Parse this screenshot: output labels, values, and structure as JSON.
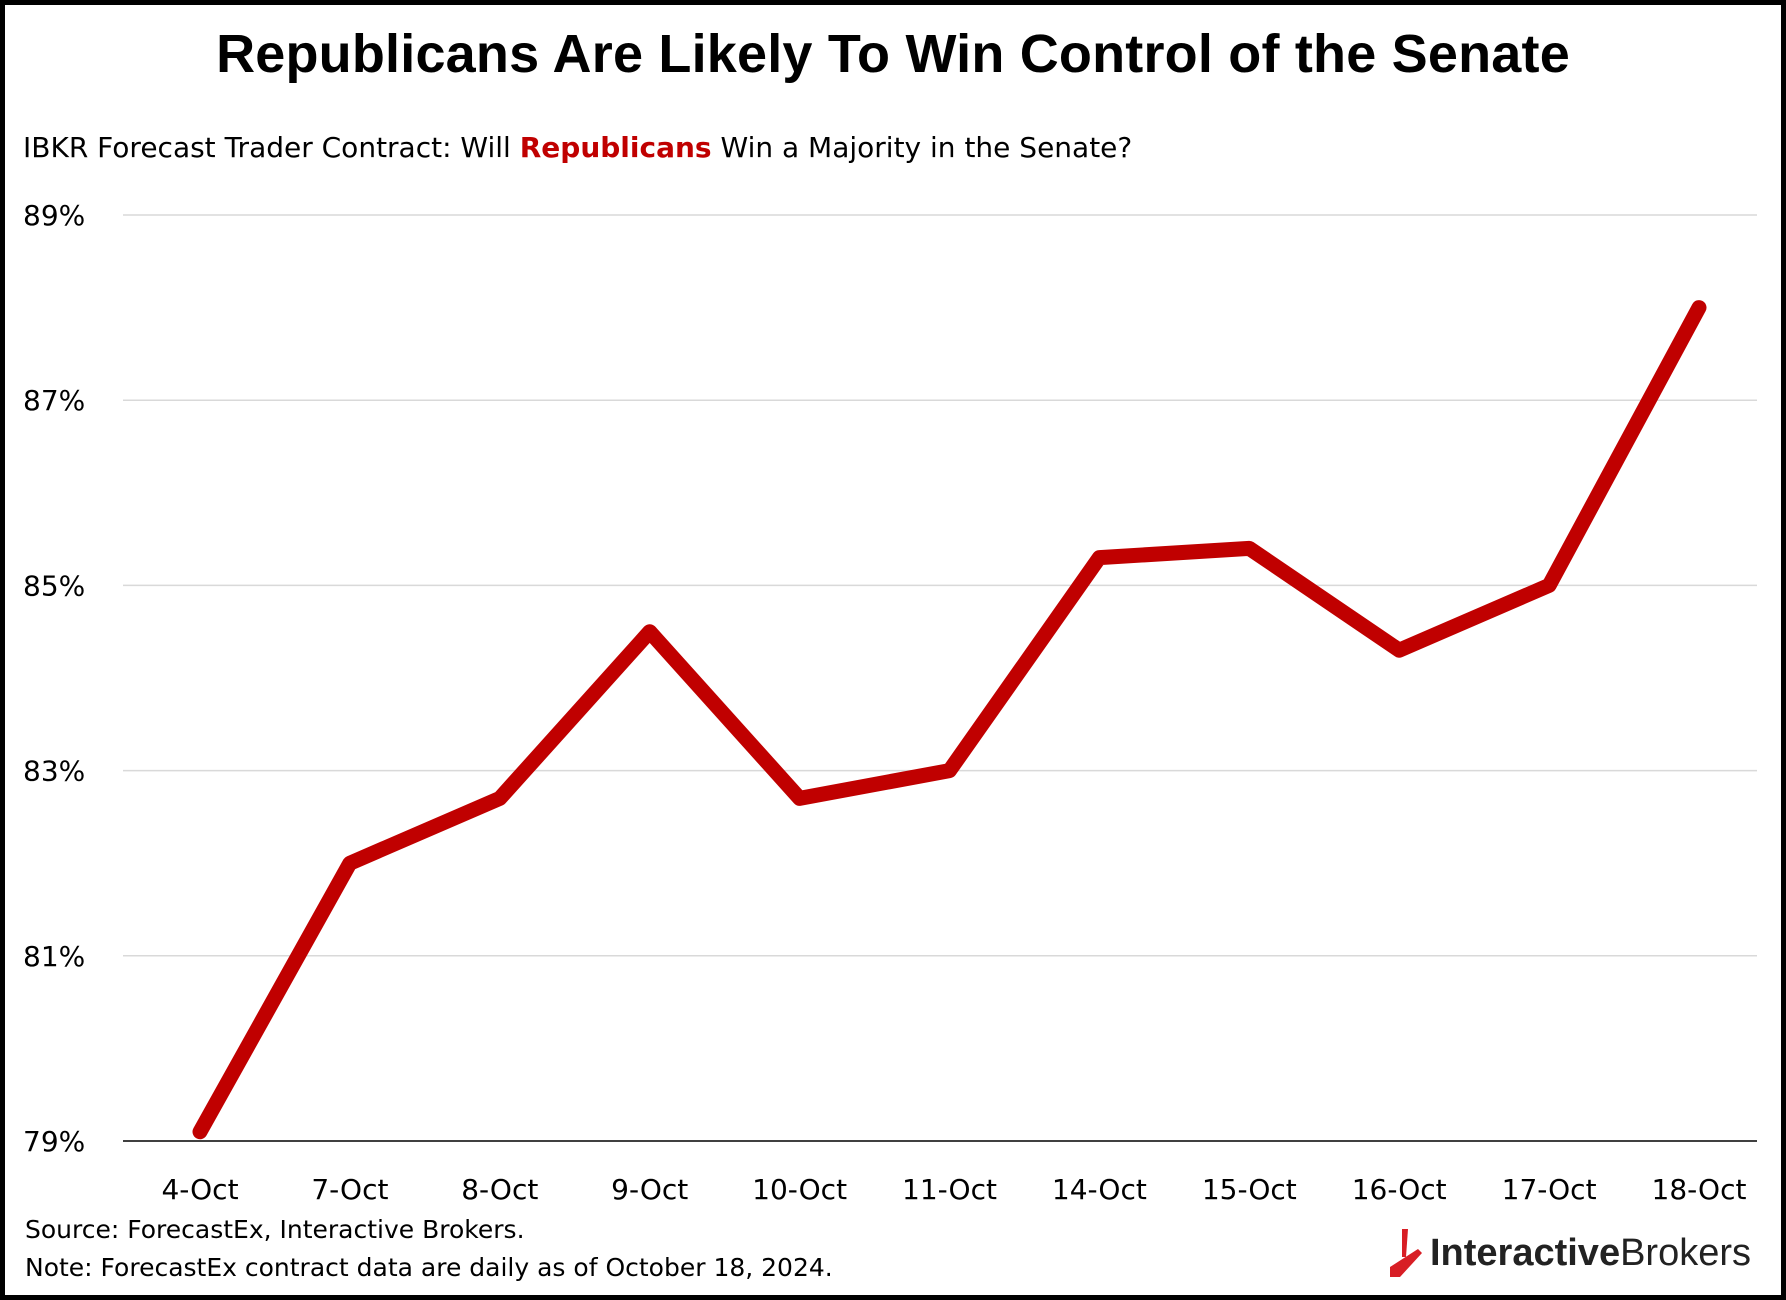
{
  "title": "Republicans Are Likely To Win Control of the Senate",
  "subtitle": {
    "prefix": "IBKR Forecast Trader Contract: Will ",
    "highlight": "Republicans",
    "suffix": " Win a Majority in the Senate?"
  },
  "chart_data": {
    "type": "line",
    "title": "Republicans Are Likely To Win Control of the Senate",
    "xlabel": "",
    "ylabel": "",
    "categories": [
      "4-Oct",
      "7-Oct",
      "8-Oct",
      "9-Oct",
      "10-Oct",
      "11-Oct",
      "14-Oct",
      "15-Oct",
      "16-Oct",
      "17-Oct",
      "18-Oct"
    ],
    "series": [
      {
        "name": "Republicans win Senate majority",
        "values": [
          79.1,
          82.0,
          82.7,
          84.5,
          82.7,
          83.0,
          85.3,
          85.4,
          84.3,
          85.0,
          88.0
        ],
        "color": "#c00000"
      }
    ],
    "ylim": [
      79,
      89
    ],
    "yticks": [
      79,
      81,
      83,
      85,
      87,
      89
    ],
    "ytick_labels": [
      "79%",
      "81%",
      "83%",
      "85%",
      "87%",
      "89%"
    ],
    "grid": true,
    "legend": "none"
  },
  "footer": {
    "source": "Source: ForecastEx, Interactive Brokers.",
    "note": "Note: ForecastEx contract data are daily as of October 18, 2024."
  },
  "logo": {
    "part1": "Interactive",
    "part2": "Brokers",
    "color": "#d81e25"
  },
  "colors": {
    "line": "#c00000",
    "grid": "#d9d9d9",
    "axis": "#000000"
  }
}
